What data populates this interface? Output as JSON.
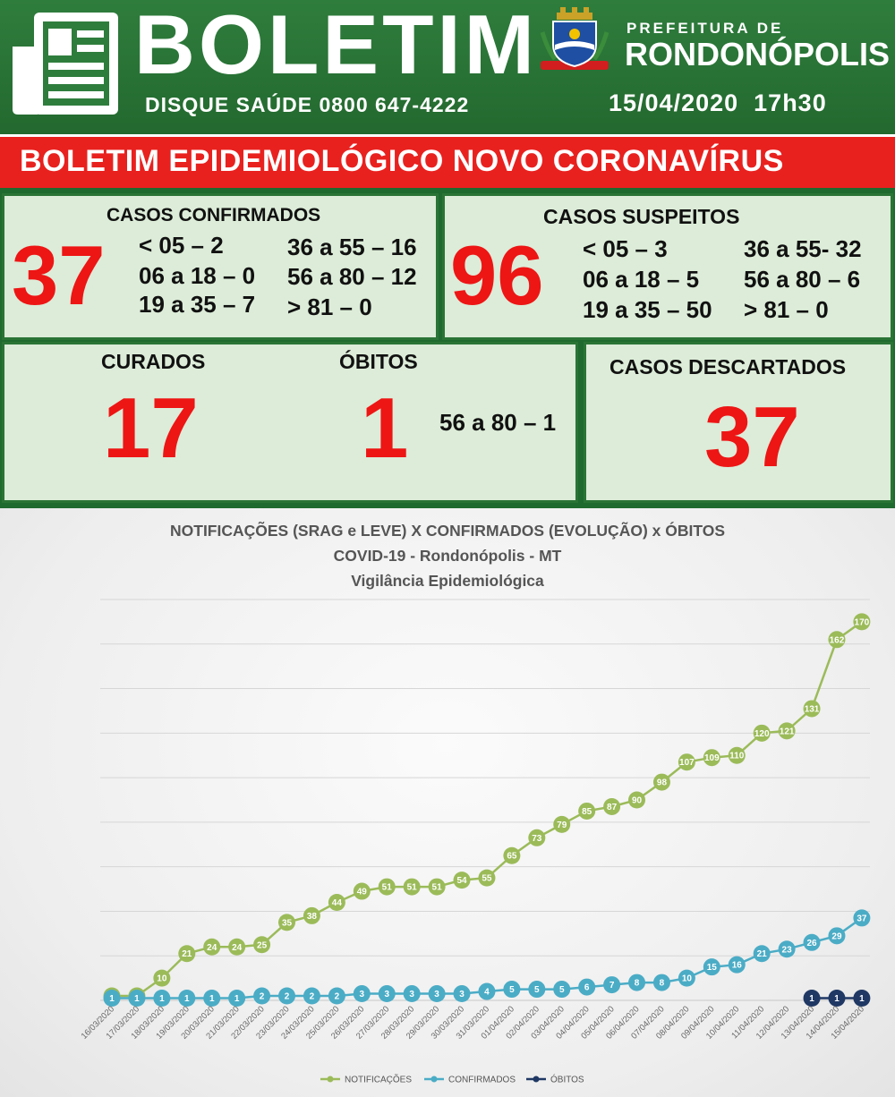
{
  "header": {
    "brand_title": "BOLETIM",
    "hotline": "DISQUE SAÚDE 0800 647-4222",
    "prefeitura_label": "PREFEITURA DE",
    "city": "RONDONÓPOLIS",
    "date": "15/04/2020",
    "time": "17h30",
    "brand_color": "#2f7d3d"
  },
  "banner": {
    "text": "BOLETIM EPIDEMIOLÓGICO NOVO CORONAVÍRUS",
    "color": "#e8211f"
  },
  "confirmed": {
    "title": "CASOS  CONFIRMADOS",
    "total": "37",
    "ages": [
      "< 05 – 2",
      "06 a 18 – 0",
      "19 a 35 – 7",
      "36 a 55 – 16",
      "56 a 80 – 12",
      "> 81  –  0"
    ]
  },
  "suspected": {
    "title": "CASOS SUSPEITOS",
    "total": "96",
    "ages": [
      "< 05 – 3",
      "06 a 18 – 5",
      "19 a 35 – 50",
      "36 a 55- 32",
      "56 a 80 – 6",
      "> 81  –  0"
    ]
  },
  "cured": {
    "title": "CURADOS",
    "total": "17"
  },
  "deaths": {
    "title": "ÓBITOS",
    "total": "1",
    "age": "56 a 80 – 1"
  },
  "discarded": {
    "title": "CASOS DESCARTADOS",
    "total": "37"
  },
  "chart_data": {
    "type": "line",
    "title": "NOTIFICAÇÕES (SRAG e LEVE) X CONFIRMADOS (EVOLUÇÃO) x ÓBITOS",
    "subtitle": "COVID-19 - Rondonópolis - MT",
    "subtitle2": "Vigilância Epidemiológica",
    "categories": [
      "16/03/2020",
      "17/03/2020",
      "18/03/2020",
      "19/03/2020",
      "20/03/2020",
      "21/03/2020",
      "22/03/2020",
      "23/03/2020",
      "24/03/2020",
      "25/03/2020",
      "26/03/2020",
      "27/03/2020",
      "28/03/2020",
      "29/03/2020",
      "30/03/2020",
      "31/03/2020",
      "01/04/2020",
      "02/04/2020",
      "03/04/2020",
      "04/04/2020",
      "05/04/2020",
      "06/04/2020",
      "07/04/2020",
      "08/04/2020",
      "09/04/2020",
      "10/04/2020",
      "11/04/2020",
      "12/04/2020",
      "13/04/2020",
      "14/04/2020",
      "15/04/2020"
    ],
    "series": [
      {
        "name": "NOTIFICAÇÕES",
        "color": "#9bbb59",
        "values": [
          2,
          2,
          10,
          21,
          24,
          24,
          25,
          35,
          38,
          44,
          49,
          51,
          51,
          51,
          54,
          55,
          65,
          73,
          79,
          85,
          87,
          90,
          98,
          107,
          109,
          110,
          120,
          121,
          131,
          162,
          170
        ]
      },
      {
        "name": "CONFIRMADOS",
        "color": "#4bacc6",
        "values": [
          1,
          1,
          1,
          1,
          1,
          1,
          2,
          2,
          2,
          2,
          3,
          3,
          3,
          3,
          3,
          4,
          5,
          5,
          5,
          6,
          7,
          8,
          8,
          10,
          15,
          16,
          21,
          23,
          26,
          29,
          37
        ]
      },
      {
        "name": "ÓBITOS",
        "color": "#1f3864",
        "values": [
          null,
          null,
          null,
          null,
          null,
          null,
          null,
          null,
          null,
          null,
          null,
          null,
          null,
          null,
          null,
          null,
          null,
          null,
          null,
          null,
          null,
          null,
          null,
          null,
          null,
          null,
          null,
          null,
          1,
          1,
          1
        ]
      }
    ],
    "ylim": [
      0,
      180
    ],
    "grid": true,
    "legend": "bottom"
  }
}
